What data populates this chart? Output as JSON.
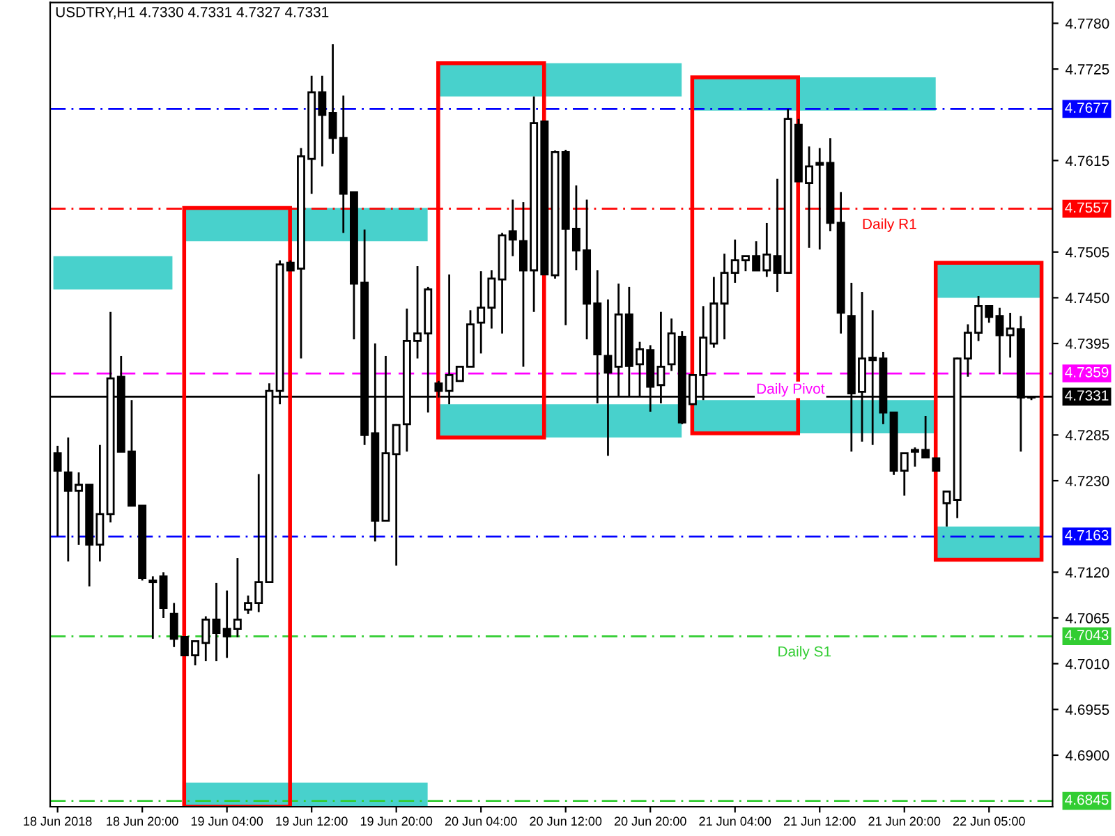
{
  "chart_data": {
    "type": "candlestick",
    "title": "USDTRY,H1 4.7330 4.7331 4.7327 4.7331",
    "categories": [
      "18 Jun 2018",
      null,
      null,
      null,
      null,
      null,
      null,
      null,
      "18 Jun 20:00",
      null,
      null,
      null,
      null,
      null,
      null,
      null,
      "19 Jun 04:00",
      null,
      null,
      null,
      null,
      null,
      null,
      null,
      "19 Jun 12:00",
      null,
      null,
      null,
      null,
      null,
      null,
      null,
      "19 Jun 20:00",
      null,
      null,
      null,
      null,
      null,
      null,
      null,
      "20 Jun 04:00",
      null,
      null,
      null,
      null,
      null,
      null,
      null,
      "20 Jun 12:00",
      null,
      null,
      null,
      null,
      null,
      null,
      null,
      "20 Jun 20:00",
      null,
      null,
      null,
      null,
      null,
      null,
      null,
      "21 Jun 04:00",
      null,
      null,
      null,
      null,
      null,
      null,
      null,
      "21 Jun 12:00",
      null,
      null,
      null,
      null,
      null,
      null,
      null,
      "21 Jun 20:00",
      null,
      null,
      null,
      null,
      null,
      null,
      null,
      "22 Jun 05:00",
      null,
      null,
      null,
      null
    ],
    "ohlc": [
      [
        4.7263,
        4.7272,
        4.7163,
        4.7242
      ],
      [
        4.724,
        4.7282,
        4.7133,
        4.7218
      ],
      [
        4.7218,
        4.724,
        4.7153,
        4.7225
      ],
      [
        4.7225,
        4.7225,
        4.7103,
        4.7153
      ],
      [
        4.7153,
        4.7273,
        4.7133,
        4.719
      ],
      [
        4.719,
        4.7433,
        4.718,
        4.7353
      ],
      [
        4.7355,
        4.738,
        4.7265,
        4.7265
      ],
      [
        4.7265,
        4.7327,
        4.72,
        4.72
      ],
      [
        4.72,
        4.72,
        4.711,
        4.7113
      ],
      [
        4.711,
        4.7115,
        4.704,
        4.7108
      ],
      [
        4.7115,
        4.712,
        4.7065,
        4.7077
      ],
      [
        4.707,
        4.7083,
        4.703,
        4.704
      ],
      [
        4.7042,
        4.7042,
        4.702,
        4.702
      ],
      [
        4.702,
        4.7037,
        4.7008,
        4.7037
      ],
      [
        4.7035,
        4.7067,
        4.7013,
        4.7063
      ],
      [
        4.7063,
        4.7107,
        4.7013,
        4.7047
      ],
      [
        4.7052,
        4.7098,
        4.7017,
        4.7043
      ],
      [
        4.7052,
        4.7137,
        4.7042,
        4.7063
      ],
      [
        4.7075,
        4.7092,
        4.707,
        4.7083
      ],
      [
        4.7083,
        4.7238,
        4.7072,
        4.7108
      ],
      [
        4.7108,
        4.7347,
        4.7108,
        4.7338
      ],
      [
        4.7338,
        4.7495,
        4.7322,
        4.749
      ],
      [
        4.7492,
        4.7495,
        4.7483,
        4.7483
      ],
      [
        4.7485,
        4.763,
        4.7377,
        4.762
      ],
      [
        4.7617,
        4.7717,
        4.7575,
        4.7697
      ],
      [
        4.7697,
        4.7717,
        4.7608,
        4.767
      ],
      [
        4.7672,
        4.7755,
        4.7623,
        4.7642
      ],
      [
        4.7642,
        4.7693,
        4.7528,
        4.7575
      ],
      [
        4.7577,
        4.7577,
        4.74,
        4.7467
      ],
      [
        4.7468,
        4.7532,
        4.7273,
        4.7285
      ],
      [
        4.7287,
        4.7395,
        4.7157,
        4.7182
      ],
      [
        4.7182,
        4.738,
        4.7182,
        4.7263
      ],
      [
        4.7262,
        4.7298,
        4.7128,
        4.7297
      ],
      [
        4.7298,
        4.7437,
        4.7265,
        4.7398
      ],
      [
        4.7398,
        4.7488,
        4.7377,
        4.7407
      ],
      [
        4.7407,
        4.7463,
        4.7312,
        4.746
      ],
      [
        4.7347,
        4.735,
        4.733,
        4.7338
      ],
      [
        4.7338,
        4.7478,
        4.7322,
        4.7357
      ],
      [
        4.735,
        4.7367,
        4.735,
        4.7367
      ],
      [
        4.7367,
        4.7435,
        4.7367,
        4.7418
      ],
      [
        4.742,
        4.7482,
        4.7383,
        4.7438
      ],
      [
        4.7438,
        4.7483,
        4.7413,
        4.7473
      ],
      [
        4.7472,
        4.7528,
        4.7407,
        4.7525
      ],
      [
        4.753,
        4.7568,
        4.75,
        4.752
      ],
      [
        4.7518,
        4.7565,
        4.7367,
        4.7483
      ],
      [
        4.7483,
        4.7692,
        4.7433,
        4.766
      ],
      [
        4.7662,
        4.7662,
        4.7478,
        4.7478
      ],
      [
        4.7477,
        4.7627,
        4.7473,
        4.7625
      ],
      [
        4.7625,
        4.7628,
        4.7417,
        4.7533
      ],
      [
        4.7533,
        4.7585,
        4.7483,
        4.7507
      ],
      [
        4.7507,
        4.7568,
        4.74,
        4.7443
      ],
      [
        4.7443,
        4.7483,
        4.7323,
        4.7382
      ],
      [
        4.738,
        4.7448,
        4.726,
        4.736
      ],
      [
        4.7367,
        4.7467,
        4.7332,
        4.743
      ],
      [
        4.743,
        4.7463,
        4.7332,
        4.7368
      ],
      [
        4.737,
        4.7397,
        4.7332,
        4.7388
      ],
      [
        4.7387,
        4.7393,
        4.7313,
        4.7343
      ],
      [
        4.7345,
        4.7433,
        4.7323,
        4.7367
      ],
      [
        4.737,
        4.7425,
        4.7362,
        4.7407
      ],
      [
        4.7403,
        4.741,
        4.7298,
        4.73
      ],
      [
        4.7322,
        4.7357,
        4.7322,
        4.7357
      ],
      [
        4.7357,
        4.744,
        4.7327,
        4.7402
      ],
      [
        4.7395,
        4.7475,
        4.739,
        4.7443
      ],
      [
        4.7443,
        4.7503,
        4.74,
        4.748
      ],
      [
        4.748,
        4.752,
        4.7468,
        4.7495
      ],
      [
        4.7495,
        4.75,
        4.7482,
        4.75
      ],
      [
        4.75,
        4.7518,
        4.7483,
        4.7483
      ],
      [
        4.7483,
        4.754,
        4.7475,
        4.7502
      ],
      [
        4.75,
        4.7593,
        4.7457,
        4.748
      ],
      [
        4.748,
        4.7677,
        4.748,
        4.7665
      ],
      [
        4.7658,
        4.7665,
        4.759,
        4.759
      ],
      [
        4.7588,
        4.7632,
        4.751,
        4.7608
      ],
      [
        4.7612,
        4.763,
        4.7508,
        4.761
      ],
      [
        4.7612,
        4.7642,
        4.753,
        4.754
      ],
      [
        4.754,
        4.7577,
        4.7407,
        4.7432
      ],
      [
        4.7428,
        4.7468,
        4.7265,
        4.7335
      ],
      [
        4.7337,
        4.7457,
        4.7277,
        4.7377
      ],
      [
        4.7378,
        4.7435,
        4.7273,
        4.7375
      ],
      [
        4.7377,
        4.7385,
        4.7298,
        4.7312
      ],
      [
        4.7312,
        4.7313,
        4.7237,
        4.7242
      ],
      [
        4.7242,
        4.7263,
        4.7212,
        4.7263
      ],
      [
        4.7267,
        4.727,
        4.7247,
        4.7265
      ],
      [
        4.7267,
        4.7308,
        4.7258,
        4.7258
      ],
      [
        4.7257,
        4.7257,
        4.7242,
        4.7242
      ],
      [
        4.7203,
        4.7217,
        4.7175,
        4.7217
      ],
      [
        4.7207,
        4.7378,
        4.7185,
        4.7377
      ],
      [
        4.7377,
        4.7418,
        4.7355,
        4.7408
      ],
      [
        4.7408,
        4.7452,
        4.7398,
        4.744
      ],
      [
        4.744,
        4.744,
        4.742,
        4.7427
      ],
      [
        4.7428,
        4.7438,
        4.7358,
        4.7405
      ],
      [
        4.7405,
        4.7432,
        4.7378,
        4.7413
      ],
      [
        4.7412,
        4.7428,
        4.7265,
        4.733
      ],
      [
        4.733,
        4.7331,
        4.7327,
        4.7331
      ]
    ],
    "ylim": [
      4.6838,
      4.7805
    ],
    "yticks": [
      {
        "value": 4.69,
        "label": "4.6900"
      },
      {
        "value": 4.6955,
        "label": "4.6955"
      },
      {
        "value": 4.701,
        "label": "4.7010"
      },
      {
        "value": 4.7065,
        "label": "4.7065"
      },
      {
        "value": 4.712,
        "label": "4.7120"
      },
      {
        "value": 4.723,
        "label": "4.7230"
      },
      {
        "value": 4.7285,
        "label": "4.7285"
      },
      {
        "value": 4.7395,
        "label": "4.7395"
      },
      {
        "value": 4.745,
        "label": "4.7450"
      },
      {
        "value": 4.7505,
        "label": "4.7505"
      },
      {
        "value": 4.7615,
        "label": "4.7615"
      },
      {
        "value": 4.7725,
        "label": "4.7725"
      },
      {
        "value": 4.778,
        "label": "4.7780"
      }
    ],
    "ref_lines": [
      {
        "axis": "y",
        "value": 4.7677,
        "label": "4.7677",
        "color": "#0000ff",
        "line_style": "dashdot"
      },
      {
        "axis": "y",
        "value": 4.7557,
        "label": "4.7557",
        "color": "#ff0000",
        "line_style": "dashdot"
      },
      {
        "axis": "y",
        "value": 4.7359,
        "label": "4.7359",
        "color": "#ff00ff",
        "line_style": "dashed"
      },
      {
        "axis": "y",
        "value": 4.7331,
        "label": "4.7331",
        "color": "#000000",
        "line_style": "solid"
      },
      {
        "axis": "y",
        "value": 4.7163,
        "label": "4.7163",
        "color": "#0000ff",
        "line_style": "dashdot"
      },
      {
        "axis": "y",
        "value": 4.7043,
        "label": "4.7043",
        "color": "#32cd32",
        "line_style": "dashdot"
      },
      {
        "axis": "y",
        "value": 4.6845,
        "label": "4.6845",
        "color": "#32cd32",
        "line_style": "dashdot"
      }
    ],
    "annotations": [
      {
        "text": "Daily R1",
        "y": 4.7557
      },
      {
        "text": "Daily Pivot",
        "y": 4.7359
      },
      {
        "text": "Daily S1",
        "y": 4.7043
      }
    ],
    "grid": false,
    "legend": false
  }
}
